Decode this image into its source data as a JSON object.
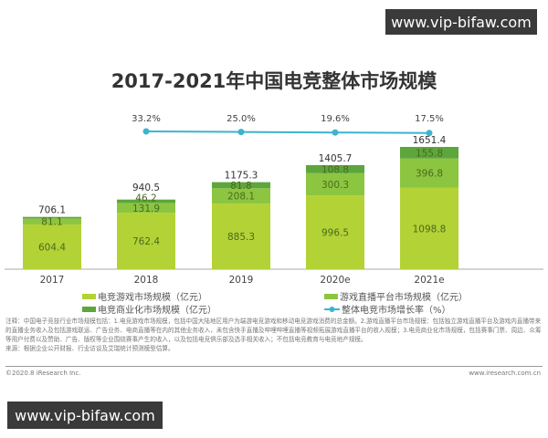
{
  "chart_data": {
    "type": "bar",
    "stacked": true,
    "title": "2017-2021年中国电竞整体市场规模",
    "categories": [
      "2017",
      "2018",
      "2019",
      "2020e",
      "2021e"
    ],
    "series": [
      {
        "name": "电竞游戏市场规模（亿元）",
        "color": "#b3d235",
        "values": [
          604.4,
          762.4,
          885.3,
          996.5,
          1098.8
        ]
      },
      {
        "name": "游戏直播平台市场规模（亿元）",
        "color": "#8cc540",
        "values": [
          81.1,
          131.9,
          208.1,
          300.3,
          396.8
        ]
      },
      {
        "name": "电竞商业化市场规模（亿元）",
        "color": "#5da63b",
        "values": [
          20.6,
          46.2,
          81.8,
          108.8,
          155.8
        ]
      }
    ],
    "segment_labels": [
      [
        "604.4",
        "762.4",
        "885.3",
        "996.5",
        "1098.8"
      ],
      [
        "81.1",
        "131.9",
        "208.1",
        "300.3",
        "396.8"
      ],
      [
        "",
        "46.2",
        "81.8",
        "108.8",
        "155.8"
      ]
    ],
    "totals": [
      706.1,
      940.5,
      1175.3,
      1405.7,
      1651.4
    ],
    "line": {
      "name": "整体电竞市场增长率（%）",
      "color": "#3bb4cf",
      "categories": [
        "2018",
        "2019",
        "2020e",
        "2021e"
      ],
      "values": [
        33.2,
        25.0,
        19.6,
        17.5
      ],
      "labels": [
        "33.2%",
        "25.0%",
        "19.6%",
        "17.5%"
      ]
    },
    "ylim": [
      0,
      1700
    ],
    "grid": false,
    "legend_placement": "bottom"
  },
  "note": "注释：中国电子竞技行业市场规模包括：1.电竞游戏市场规模，包括中国大陆地区用户为端游电竞游戏和移动电竞游戏消费的总金额。2.游戏直播平台市场规模：包括独立游戏直播平台及游戏内直播带来的直播业务收入及包括游戏联运、广告业务、电商直播等在内的其他业务收入，未包含快手直播及哔哩哔哩直播等视频拓展游戏直播平台的收入规模；3.电竞商业化市场规模，包括赛事门票、周边、众筹等用户付费以及赞助、广告、版权等企业围绕赛事产生的收入，以及包括电竞俱乐部及选手相关收入；不包括电竞教育与电竞地产规模。",
  "source": "来源：根据企业公开财报、行业访谈及艾瑞统计预测模型估算。",
  "copyright": "©2020.8 iResearch Inc.",
  "website": "www.iresearch.com.cn",
  "watermark": "www.vip-bifaw.com"
}
